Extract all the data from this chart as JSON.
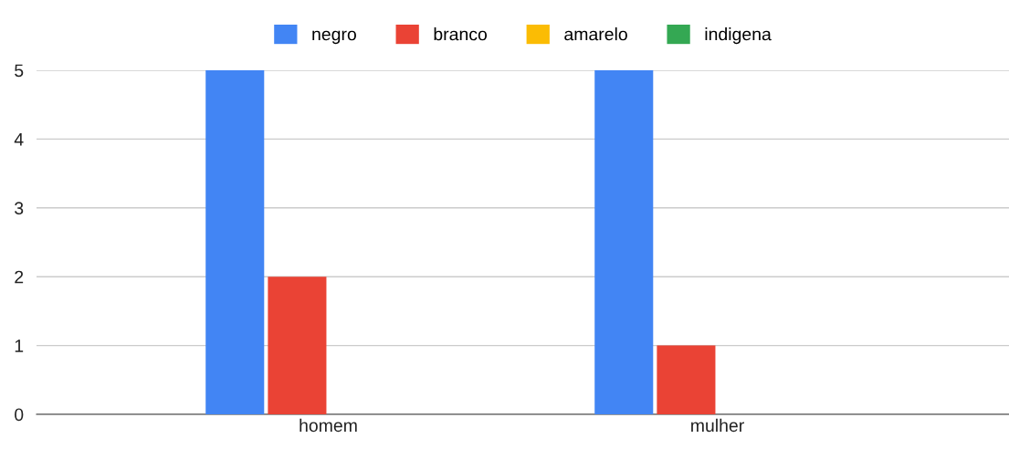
{
  "chart_data": {
    "type": "bar",
    "categories": [
      "homem",
      "mulher"
    ],
    "series": [
      {
        "name": "negro",
        "color": "#4285f4",
        "values": [
          5,
          5
        ]
      },
      {
        "name": "branco",
        "color": "#ea4335",
        "values": [
          2,
          1
        ]
      },
      {
        "name": "amarelo",
        "color": "#fbbc04",
        "values": [
          0,
          0
        ]
      },
      {
        "name": "indigena",
        "color": "#34a853",
        "values": [
          0,
          0
        ]
      }
    ],
    "ylim": [
      0,
      5
    ],
    "yticks": [
      0,
      1,
      2,
      3,
      4,
      5
    ],
    "grid": "y",
    "legend": "top"
  }
}
